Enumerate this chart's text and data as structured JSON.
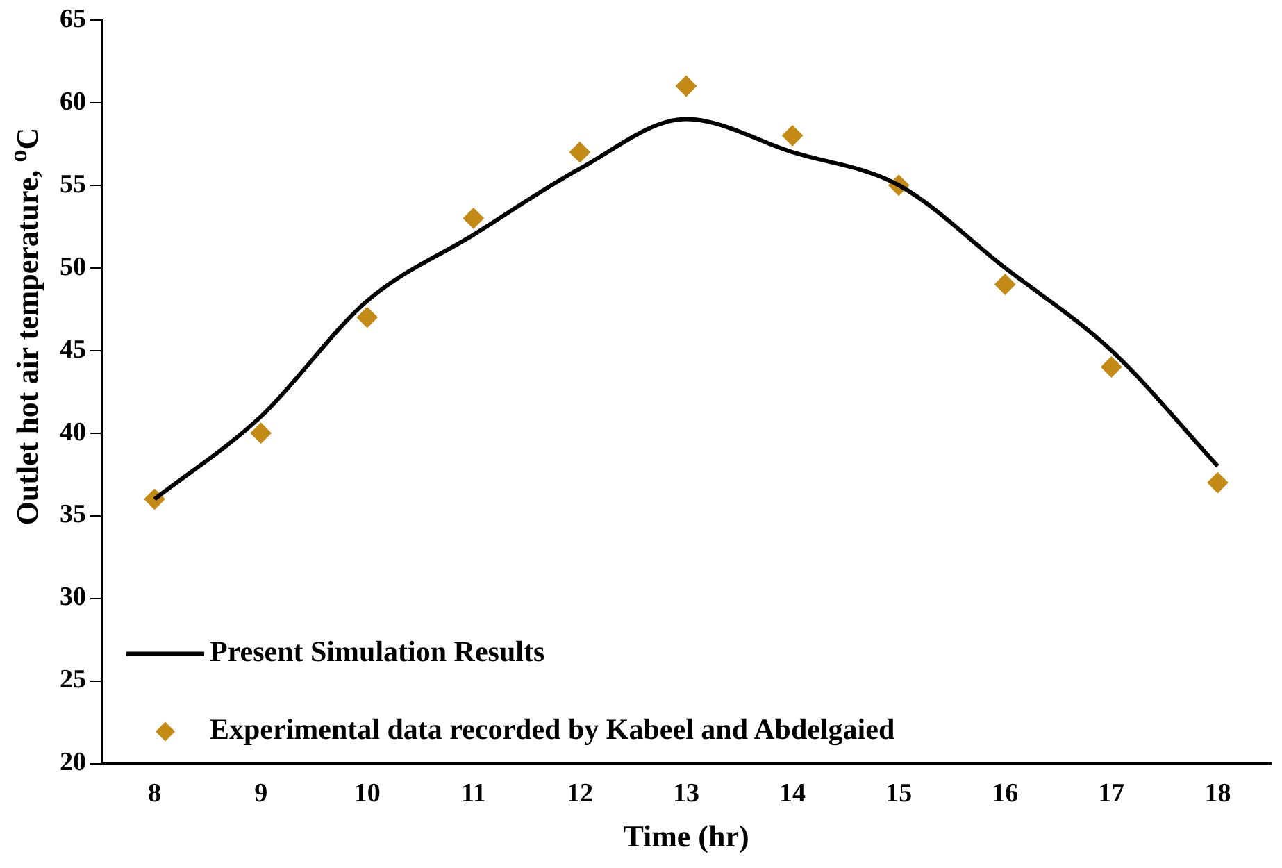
{
  "chart_data": {
    "type": "line",
    "xlabel": "Time (hr)",
    "ylabel": "Outlet hot air temperature, $^{o}$C",
    "x": [
      8,
      9,
      10,
      11,
      12,
      13,
      14,
      15,
      16,
      17,
      18
    ],
    "series": [
      {
        "name": "Present Simulation Results",
        "type": "line",
        "color": "#000000",
        "marker": "none",
        "line_style": "solid",
        "values": [
          36,
          41,
          48,
          52,
          56,
          59,
          57,
          55,
          50,
          45,
          38
        ]
      },
      {
        "name": "Experimental data recorded by Kabeel and Abdelgaied",
        "type": "scatter",
        "color": "#c48a16",
        "marker": "diamond",
        "values": [
          36,
          40,
          47,
          53,
          57,
          61,
          58,
          55,
          49,
          44,
          37
        ]
      }
    ],
    "xlim": [
      7.5,
      18.5
    ],
    "xticks": [
      8,
      9,
      10,
      11,
      12,
      13,
      14,
      15,
      16,
      17,
      18
    ],
    "ylim": [
      20,
      65
    ],
    "yticks": [
      20,
      25,
      30,
      35,
      40,
      45,
      50,
      55,
      60,
      65
    ],
    "grid": false,
    "legend": "bottom left"
  }
}
